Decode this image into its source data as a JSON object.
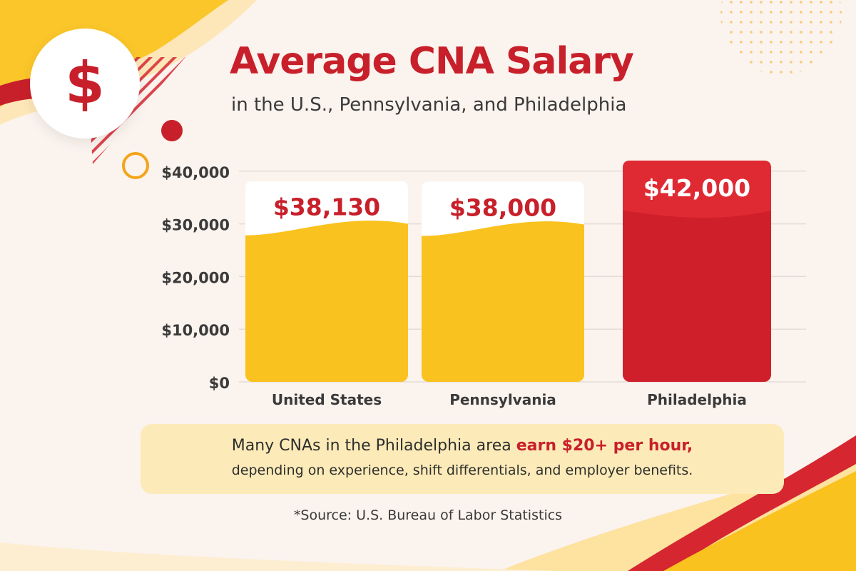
{
  "header": {
    "badge_symbol": "$",
    "title": "Average CNA Salary",
    "subtitle": "in the U.S., Pennsylvania, and Philadelphia"
  },
  "chart_data": {
    "type": "bar",
    "categories": [
      "United States",
      "Pennsylvania",
      "Philadelphia"
    ],
    "values": [
      38130,
      38000,
      42000
    ],
    "value_labels": [
      "$38,130",
      "$38,000",
      "$42,000"
    ],
    "y_ticks": [
      0,
      10000,
      20000,
      30000,
      40000
    ],
    "y_tick_labels": [
      "$0",
      "$10,000",
      "$20,000",
      "$30,000",
      "$40,000"
    ],
    "ylim": [
      0,
      42000
    ],
    "grid": true,
    "title": "Average CNA Salary",
    "bar_colors": [
      "#f9c21e",
      "#f9c21e",
      "#cf1f2a"
    ],
    "label_colors": [
      "#c8202b",
      "#c8202b",
      "#ffffff"
    ]
  },
  "note": {
    "text_before": "Many CNAs in the Philadelphia area ",
    "highlight": "earn $20+ per hour,",
    "line2": "depending on experience, shift differentials, and employer benefits."
  },
  "source": "*Source: U.S. Bureau of Labor Statistics",
  "colors": {
    "accent_red": "#c8202b",
    "accent_yellow": "#f9c21e",
    "background": "#fbf3ee"
  }
}
